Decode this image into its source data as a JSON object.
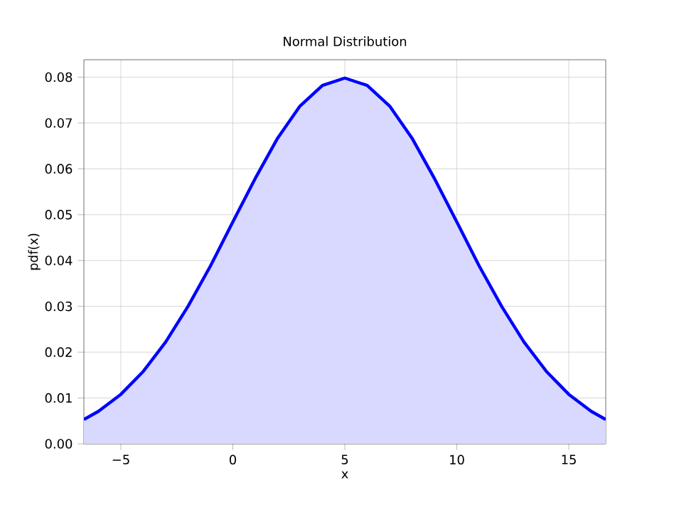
{
  "chart_data": {
    "type": "area",
    "title": "Normal Distribution",
    "xlabel": "x",
    "ylabel": "pdf(x)",
    "x": [
      -6.65,
      -6,
      -5,
      -4,
      -3,
      -2,
      -1,
      0,
      1,
      2,
      3,
      4,
      5,
      6,
      7,
      8,
      9,
      10,
      11,
      12,
      13,
      14,
      15,
      16,
      16.65
    ],
    "series": [
      {
        "color": "#0000ff",
        "values": [
          0.0053,
          0.0071,
          0.0108,
          0.0158,
          0.0222,
          0.03,
          0.0388,
          0.0484,
          0.0579,
          0.0667,
          0.0737,
          0.0782,
          0.0798,
          0.0782,
          0.0737,
          0.0667,
          0.0579,
          0.0484,
          0.0388,
          0.03,
          0.0222,
          0.0158,
          0.0108,
          0.0071,
          0.0053
        ]
      }
    ],
    "xlim": [
      -6.65,
      16.65
    ],
    "ylim": [
      0,
      0.0838
    ],
    "xticks": [
      {
        "value": -5,
        "label": "−5"
      },
      0,
      5,
      10,
      15
    ],
    "yticks": [
      {
        "value": 0,
        "label": "0.00"
      },
      {
        "value": 0.01,
        "label": "0.01"
      },
      {
        "value": 0.02,
        "label": "0.02"
      },
      {
        "value": 0.03,
        "label": "0.03"
      },
      {
        "value": 0.04,
        "label": "0.04"
      },
      {
        "value": 0.05,
        "label": "0.05"
      },
      {
        "value": 0.06,
        "label": "0.06"
      },
      {
        "value": 0.07,
        "label": "0.07"
      },
      {
        "value": 0.08,
        "label": "0.08"
      }
    ],
    "grid": true,
    "marker": "none",
    "line_style": "solid"
  }
}
